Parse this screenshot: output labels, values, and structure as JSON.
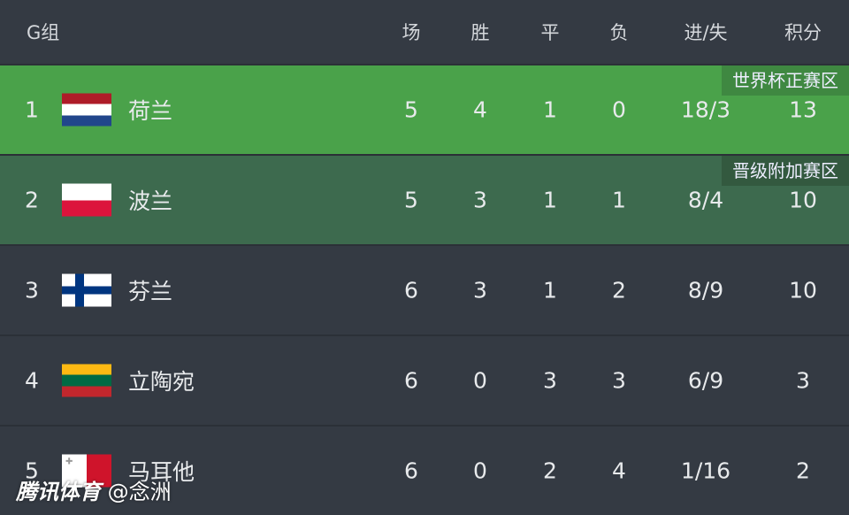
{
  "header": {
    "group": "G组",
    "cols": [
      "场",
      "胜",
      "平",
      "负",
      "进/失",
      "积分"
    ]
  },
  "rows": [
    {
      "rank": "1",
      "name": "荷兰",
      "cells": [
        "5",
        "4",
        "1",
        "0",
        "18/3",
        "13"
      ],
      "tag": "世界杯正赛区",
      "bg": "#4aa24a",
      "tag_bg": "#3f8841",
      "flag": "netherlands"
    },
    {
      "rank": "2",
      "name": "波兰",
      "cells": [
        "5",
        "3",
        "1",
        "1",
        "8/4",
        "10"
      ],
      "tag": "晋级附加赛区",
      "bg": "#3d6a4e",
      "tag_bg": "#33593f",
      "flag": "poland"
    },
    {
      "rank": "3",
      "name": "芬兰",
      "cells": [
        "6",
        "3",
        "1",
        "2",
        "8/9",
        "10"
      ],
      "flag": "finland"
    },
    {
      "rank": "4",
      "name": "立陶宛",
      "cells": [
        "6",
        "0",
        "3",
        "3",
        "6/9",
        "3"
      ],
      "flag": "lithuania"
    },
    {
      "rank": "5",
      "name": "马耳他",
      "cells": [
        "6",
        "0",
        "2",
        "4",
        "1/16",
        "2"
      ],
      "flag": "malta"
    }
  ],
  "watermark": {
    "brand": "腾讯体育",
    "author": "@念洲"
  }
}
